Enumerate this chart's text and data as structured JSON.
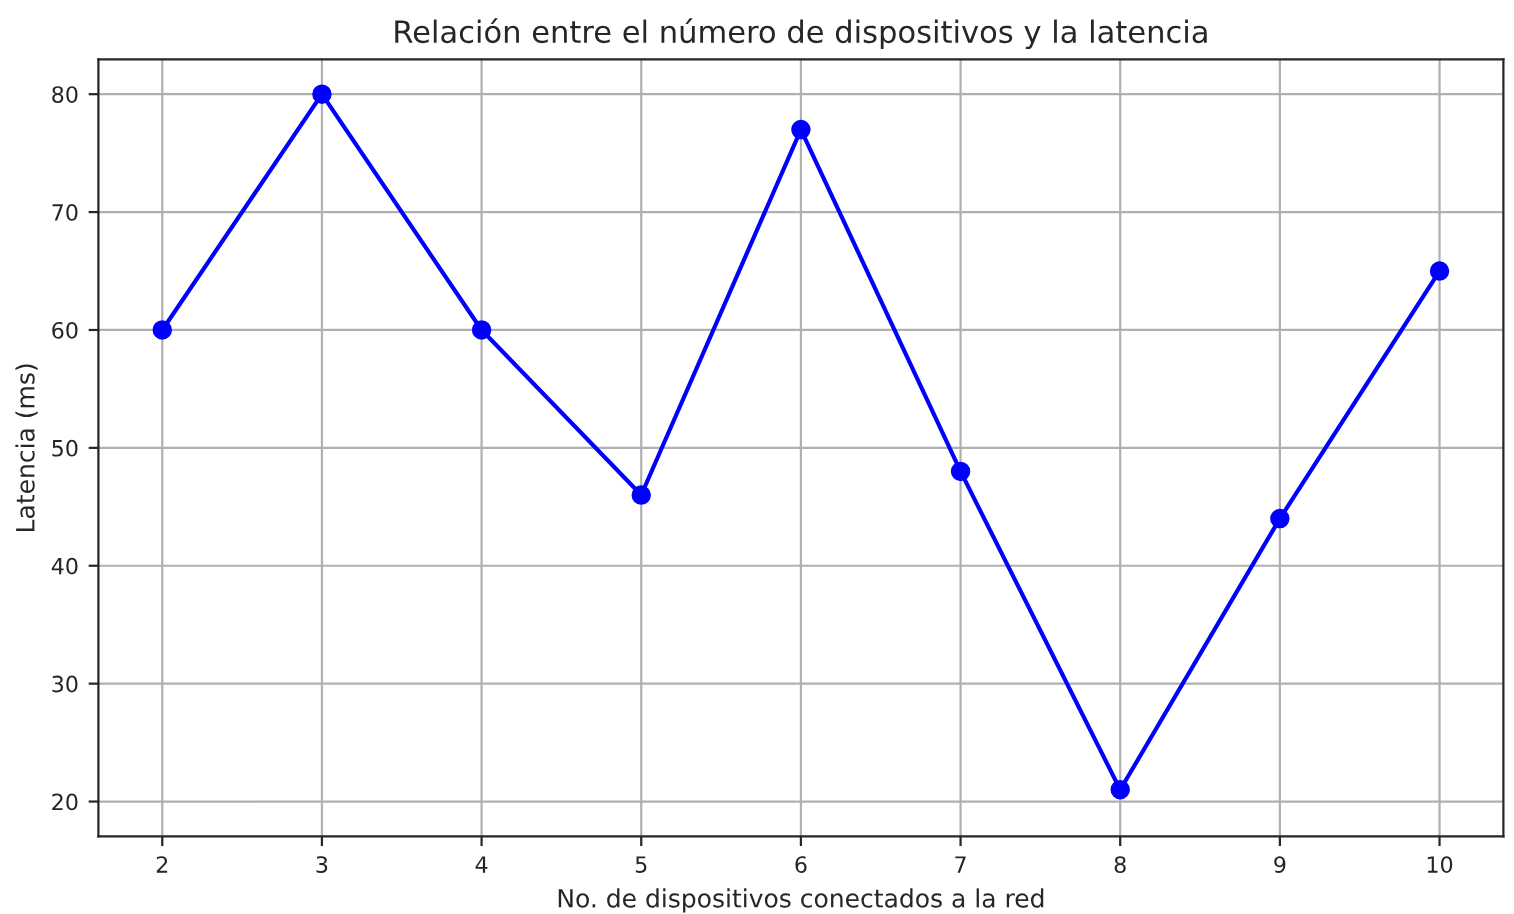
{
  "chart_data": {
    "type": "line",
    "title": "Relación entre el número de dispositivos y la latencia",
    "xlabel": "No. de dispositivos conectados a la red",
    "ylabel": "Latencia (ms)",
    "x": [
      2,
      3,
      4,
      5,
      6,
      7,
      8,
      9,
      10
    ],
    "series": [
      {
        "color": "#0000ff",
        "values": [
          60,
          80,
          60,
          46,
          77,
          48,
          21,
          44,
          65
        ]
      }
    ],
    "xlim": [
      1.6,
      10.4
    ],
    "xticks": [
      2,
      3,
      4,
      5,
      6,
      7,
      8,
      9,
      10
    ],
    "ylim": [
      17.05,
      82.95
    ],
    "yticks": [
      20,
      30,
      40,
      50,
      60,
      70,
      80
    ],
    "grid": true,
    "marker": "circle",
    "line_style": "solid"
  }
}
